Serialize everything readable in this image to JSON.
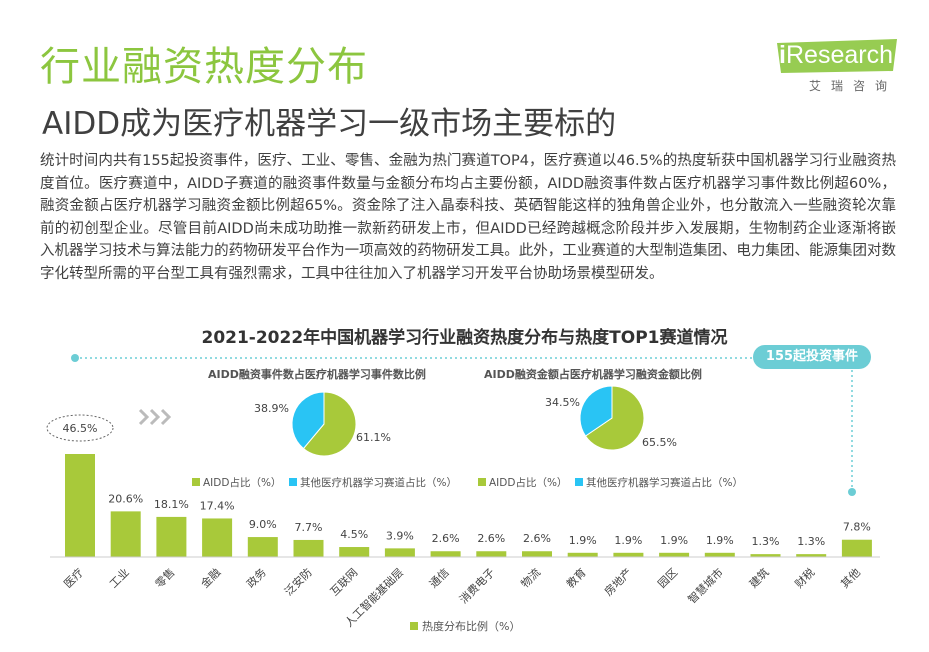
{
  "header": {
    "title": "行业融资热度分布",
    "subtitle": "AIDD成为医疗机器学习一级市场主要标的",
    "logo_brand_prefix": "i",
    "logo_brand_suffix": "Research",
    "logo_cn": "艾瑞咨询"
  },
  "body_text": "统计时间内共有155起投资事件，医疗、工业、零售、金融为热门赛道TOP4，医疗赛道以46.5%的热度斩获中国机器学习行业融资热度首位。医疗赛道中，AIDD子赛道的融资事件数量与金额分布均占主要份额，AIDD融资事件数占医疗机器学习事件数比例超60%，融资金额占医疗机器学习融资金额比例超65%。资金除了注入晶泰科技、英硒智能这样的独角兽企业外，也分散流入一些融资轮次靠前的初创型企业。尽管目前AIDD尚未成功助推一款新药研发上市，但AIDD已经跨越概念阶段并步入发展期，生物制药企业逐渐将嵌入机器学习技术与算法能力的药物研发平台作为一项高效的药物研发工具。此外，工业赛道的大型制造集团、电力集团、能源集团对数字化转型所需的平台型工具有强烈需求，工具中往往加入了机器学习开发平台协助场景模型研发。",
  "event_pill": "155起投资事件",
  "colors": {
    "green": "#a8c93a",
    "blue": "#29c4f4",
    "title_green": "#8cc63f",
    "pill": "#6ccdd5"
  },
  "chart_data": [
    {
      "type": "bar",
      "title": "2021-2022年中国机器学习行业融资热度分布与热度TOP1赛道情况",
      "categories": [
        "医疗",
        "工业",
        "零售",
        "金融",
        "政务",
        "泛安防",
        "互联网",
        "人工智能基础层",
        "通信",
        "消费电子",
        "物流",
        "教育",
        "房地产",
        "园区",
        "智慧城市",
        "建筑",
        "财税",
        "其他"
      ],
      "series": [
        {
          "name": "热度分布比例（%）",
          "values": [
            46.5,
            20.6,
            18.1,
            17.4,
            9.0,
            7.7,
            4.5,
            3.9,
            2.6,
            2.6,
            2.6,
            1.9,
            1.9,
            1.9,
            1.9,
            1.3,
            1.3,
            7.8
          ]
        }
      ],
      "value_labels": [
        "46.5%",
        "20.6%",
        "18.1%",
        "17.4%",
        "9.0%",
        "7.7%",
        "4.5%",
        "3.9%",
        "2.6%",
        "2.6%",
        "2.6%",
        "1.9%",
        "1.9%",
        "1.9%",
        "1.9%",
        "1.3%",
        "1.3%",
        "7.8%"
      ],
      "legend": "bottom"
    },
    {
      "type": "pie",
      "title": "AIDD融资事件数占医疗机器学习事件数比例",
      "labels": [
        "AIDD占比（%）",
        "其他医疗机器学习赛道占比（%）"
      ],
      "values": [
        61.1,
        38.9
      ],
      "value_labels": [
        "61.1%",
        "38.9%"
      ],
      "legend": "bottom"
    },
    {
      "type": "pie",
      "title": "AIDD融资金额占医疗机器学习融资金额比例",
      "labels": [
        "AIDD占比（%）",
        "其他医疗机器学习赛道占比（%）"
      ],
      "values": [
        65.5,
        34.5
      ],
      "value_labels": [
        "65.5%",
        "34.5%"
      ],
      "legend": "bottom"
    }
  ]
}
